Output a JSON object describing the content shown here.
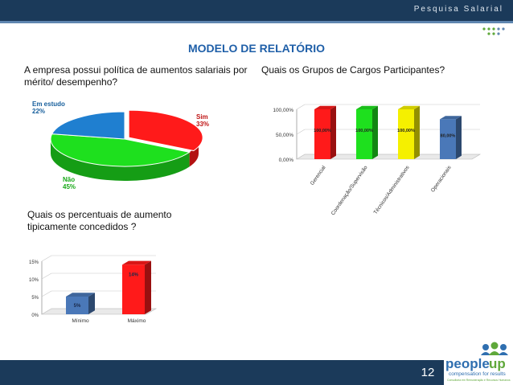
{
  "header": {
    "title": "Pesquisa Salarial"
  },
  "page_title": "MODELO DE RELATÓRIO",
  "questions": {
    "q1": "A empresa possui política de aumentos salariais por mérito/ desempenho?",
    "q2": "Quais os Grupos de Cargos Participantes?",
    "q3": "Quais os percentuais de aumento tipicamente concedidos ?"
  },
  "footer": {
    "page_number": "12"
  },
  "logo": {
    "name": "peopleup",
    "tagline": "compensation for results",
    "subline": "Consultoria em Remuneração e Recursos Humanos"
  },
  "colors": {
    "navy": "#1b3a5a",
    "title_blue": "#1f5fa8",
    "red": "#ff1a1a",
    "green": "#1ee01e",
    "yellow": "#f5f000",
    "blue": "#4a78b8"
  },
  "chart_data": [
    {
      "type": "pie",
      "title": "",
      "slices": [
        {
          "label": "Sim",
          "value_label": "33%",
          "value": 33,
          "color": "#ff1a1a"
        },
        {
          "label": "Não",
          "value_label": "45%",
          "value": 45,
          "color": "#1ee01e"
        },
        {
          "label": "Em estudo",
          "value_label": "22%",
          "value": 22,
          "color": "#1f7fd0"
        }
      ]
    },
    {
      "type": "bar",
      "title": "",
      "categories": [
        "Gerencial",
        "Coordenação/Supervisão",
        "Técnicos/Administrativos",
        "Operacionais"
      ],
      "values": [
        100,
        100,
        100,
        80
      ],
      "data_labels": [
        "100,00%",
        "100,00%",
        "100,00%",
        "80,00%"
      ],
      "colors": [
        "#ff1a1a",
        "#1ee01e",
        "#f5f000",
        "#4a78b8"
      ],
      "yticks": [
        "0,00%",
        "50,00%",
        "100,00%"
      ],
      "ylim": [
        0,
        100
      ]
    },
    {
      "type": "bar",
      "title": "",
      "categories": [
        "Mínimo",
        "Máximo"
      ],
      "values": [
        5,
        14
      ],
      "data_labels": [
        "5%",
        "14%"
      ],
      "colors": [
        "#4a78b8",
        "#ff1a1a"
      ],
      "yticks": [
        "0%",
        "5%",
        "10%",
        "15%"
      ],
      "ylim": [
        0,
        15
      ]
    }
  ]
}
